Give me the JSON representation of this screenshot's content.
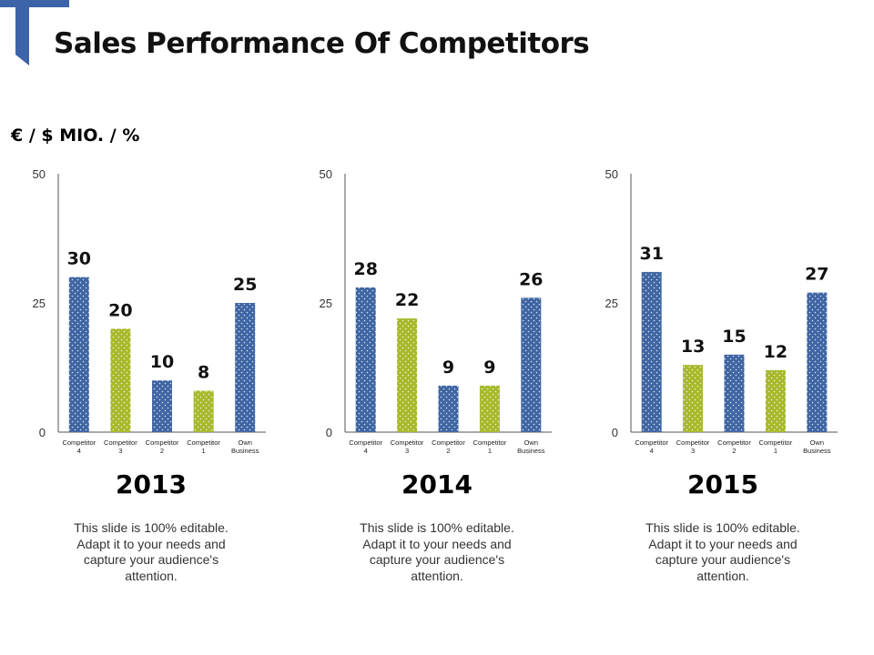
{
  "header": {
    "title": "Sales Performance Of Competitors",
    "unit_label": "€ / $ MIO. / %"
  },
  "colors": {
    "blue": "#3f66a3",
    "green": "#a7b92b",
    "accent": "#3d63a8",
    "axis": "#555555"
  },
  "chart_data": [
    {
      "type": "bar",
      "title": "2013",
      "categories": [
        "Competitor 4",
        "Competitor 3",
        "Competitor 2",
        "Competitor 1",
        "Own Business"
      ],
      "values": [
        30,
        20,
        10,
        8,
        25
      ],
      "ylim": [
        0,
        50
      ],
      "yticks": [
        0,
        25,
        50
      ],
      "xlabel": "",
      "ylabel": "",
      "grid": false
    },
    {
      "type": "bar",
      "title": "2014",
      "categories": [
        "Competitor 4",
        "Competitor 3",
        "Competitor 2",
        "Competitor 1",
        "Own Business"
      ],
      "values": [
        28,
        22,
        9,
        9,
        26
      ],
      "ylim": [
        0,
        50
      ],
      "yticks": [
        0,
        25,
        50
      ],
      "xlabel": "",
      "ylabel": "",
      "grid": false
    },
    {
      "type": "bar",
      "title": "2015",
      "categories": [
        "Competitor 4",
        "Competitor 3",
        "Competitor 2",
        "Competitor 1",
        "Own Business"
      ],
      "values": [
        31,
        13,
        15,
        12,
        27
      ],
      "ylim": [
        0,
        50
      ],
      "yticks": [
        0,
        25,
        50
      ],
      "xlabel": "",
      "ylabel": "",
      "grid": false
    }
  ],
  "captions": [
    "This slide is 100% editable. Adapt it to your needs and capture your audience's attention.",
    "This slide is 100% editable. Adapt it to your needs and capture your audience's attention.",
    "This slide is 100% editable. Adapt it to your needs and capture your audience's attention."
  ]
}
